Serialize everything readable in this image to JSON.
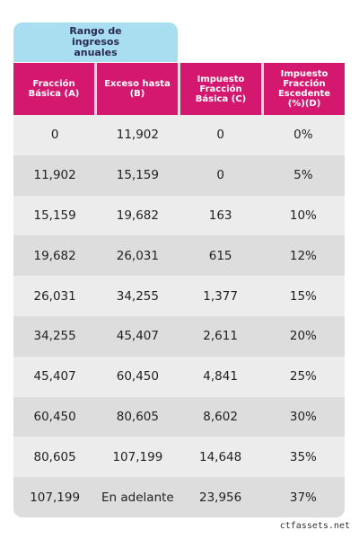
{
  "table": {
    "tab": "Rango de ingresos anuales",
    "headers": [
      "Fracción Básica (A)",
      "Exceso hasta (B)",
      "Impuesto Fracción Básica (C)",
      "Impuesto Fracción Escedente (%)(D)"
    ],
    "rows": [
      [
        "0",
        "11,902",
        "0",
        "0%"
      ],
      [
        "11,902",
        "15,159",
        "0",
        "5%"
      ],
      [
        "15,159",
        "19,682",
        "163",
        "10%"
      ],
      [
        "19,682",
        "26,031",
        "615",
        "12%"
      ],
      [
        "26,031",
        "34,255",
        "1,377",
        "15%"
      ],
      [
        "34,255",
        "45,407",
        "2,611",
        "20%"
      ],
      [
        "45,407",
        "60,450",
        "4,841",
        "25%"
      ],
      [
        "60,450",
        "80,605",
        "8,602",
        "30%"
      ],
      [
        "80,605",
        "107,199",
        "14,648",
        "35%"
      ],
      [
        "107,199",
        "En adelante",
        "23,956",
        "37%"
      ]
    ]
  },
  "footer": {
    "source": "ctfassets.net"
  }
}
